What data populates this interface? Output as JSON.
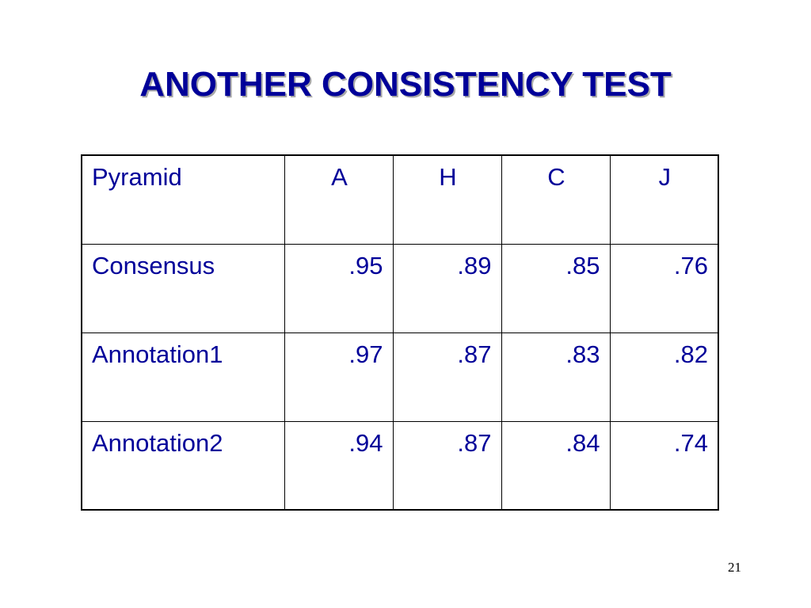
{
  "slide": {
    "title": "ANOTHER CONSISTENCY TEST",
    "number": "21"
  },
  "table": {
    "header": {
      "label": "Pyramid",
      "columns": [
        "A",
        "H",
        "C",
        "J"
      ]
    },
    "rows": [
      {
        "label": "Consensus",
        "values": [
          ".95",
          ".89",
          ".85",
          ".76"
        ]
      },
      {
        "label": "Annotation1",
        "values": [
          ".97",
          ".87",
          ".83",
          ".82"
        ]
      },
      {
        "label": "Annotation2",
        "values": [
          ".94",
          ".87",
          ".84",
          ".74"
        ]
      }
    ]
  },
  "colors": {
    "text": "#000099",
    "title_shadow": "#a8a8a8",
    "border": "#000000"
  }
}
